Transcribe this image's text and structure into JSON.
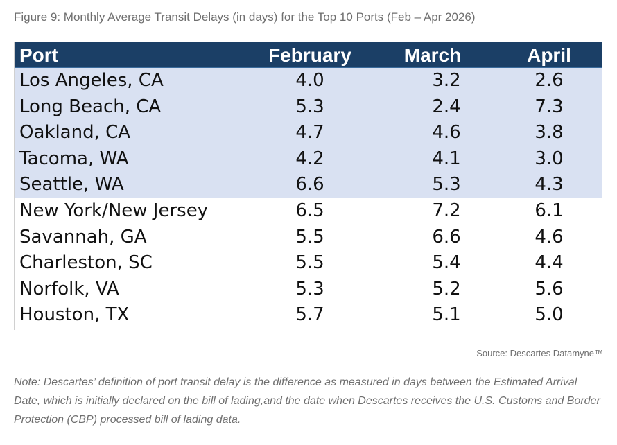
{
  "caption": "Figure 9: Monthly Average Transit Delays (in days) for the Top 10 Ports (Feb – Apr 2026)",
  "source": "Source: Descartes Datamyne™",
  "note": "Note: Descartes’ definition of port transit delay is the difference as measured in days between the Estimated Arrival Date, which is initially declared on the bill of lading,and the date when Descartes receives the U.S. Customs and Border Protection (CBP) processed bill of lading data.",
  "colors": {
    "header_bg": "#1b3f66",
    "header_text": "#ffffff",
    "highlight_bg": "#d9e1f2",
    "caption_text": "#6f6f6f"
  },
  "chart_data": {
    "type": "table",
    "columns": [
      "Port",
      "February",
      "March",
      "April"
    ],
    "highlighted_rows": [
      0,
      1,
      2,
      3,
      4
    ],
    "rows": [
      [
        "Los Angeles, CA",
        "4.0",
        "3.2",
        "2.6"
      ],
      [
        "Long Beach, CA",
        "5.3",
        "2.4",
        "7.3"
      ],
      [
        "Oakland, CA",
        "4.7",
        "4.6",
        "3.8"
      ],
      [
        "Tacoma, WA",
        "4.2",
        "4.1",
        "3.0"
      ],
      [
        "Seattle, WA",
        "6.6",
        "5.3",
        "4.3"
      ],
      [
        "New York/New Jersey",
        "6.5",
        "7.2",
        "6.1"
      ],
      [
        "Savannah, GA",
        "5.5",
        "6.6",
        "4.6"
      ],
      [
        "Charleston, SC",
        "5.5",
        "5.4",
        "4.4"
      ],
      [
        "Norfolk, VA",
        "5.3",
        "5.2",
        "5.6"
      ],
      [
        "Houston, TX",
        "5.7",
        "5.1",
        "5.0"
      ]
    ]
  }
}
